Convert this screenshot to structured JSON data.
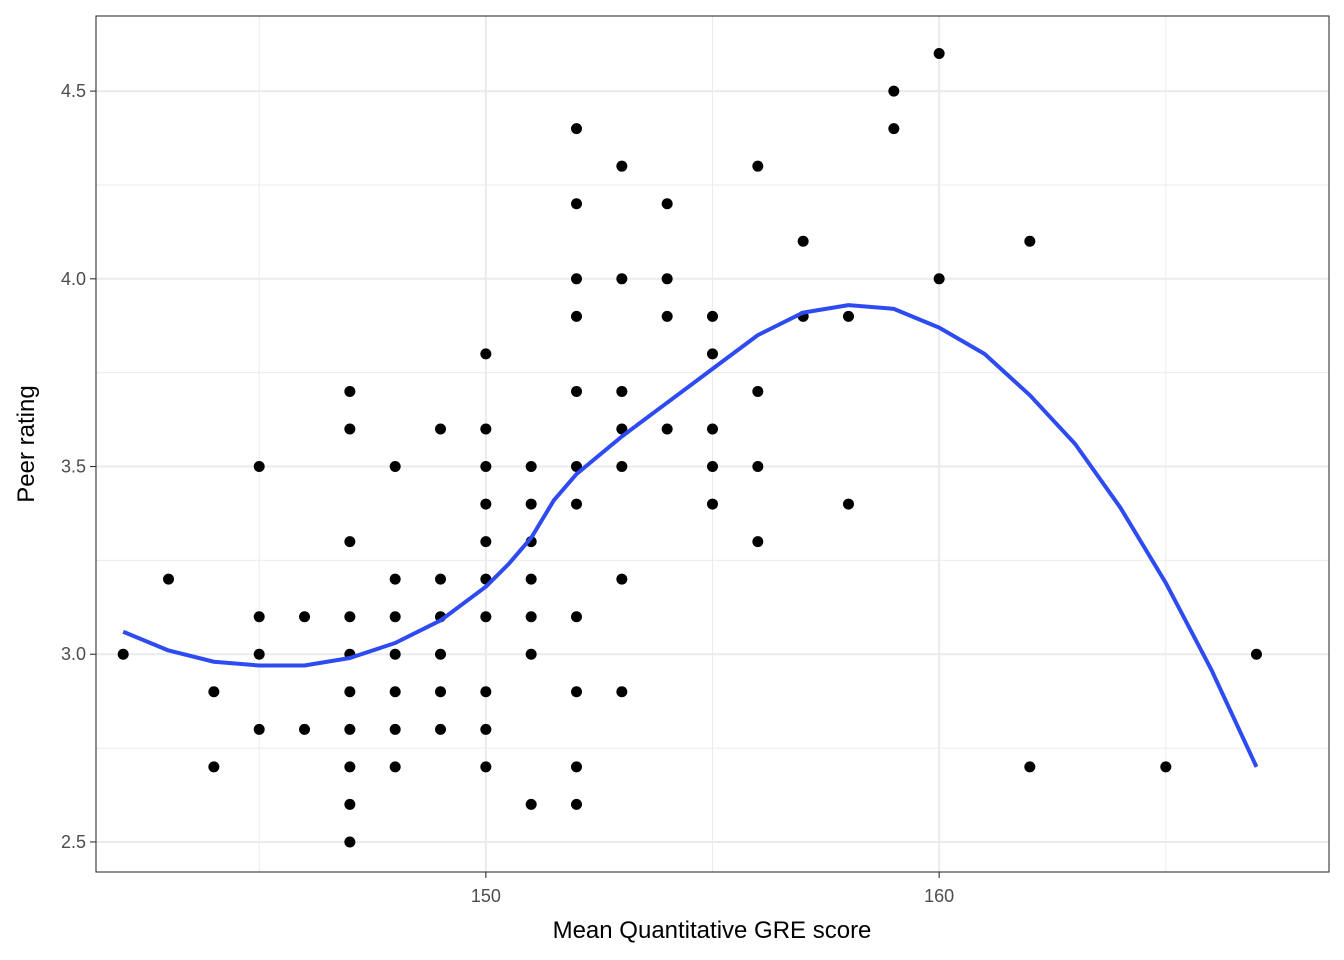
{
  "chart_data": {
    "type": "scatter",
    "title": "",
    "xlabel": "Mean Quantitative GRE score",
    "ylabel": "Peer rating",
    "xlim": [
      141.4,
      168.6
    ],
    "ylim": [
      2.42,
      4.7
    ],
    "x_ticks": [
      150,
      160
    ],
    "x_tick_labels": [
      "150",
      "160"
    ],
    "x_minor_ticks": [
      145,
      155,
      165
    ],
    "y_ticks": [
      2.5,
      3.0,
      3.5,
      4.0,
      4.5
    ],
    "y_tick_labels": [
      "2.5",
      "3.0",
      "3.5",
      "4.0",
      "4.5"
    ],
    "y_minor_ticks": [
      2.75,
      3.25,
      3.75,
      4.25
    ],
    "grid": true,
    "legend": "none",
    "colors": {
      "points": "#000000",
      "smooth_line": "#2e4bf2",
      "grid": "#ebebeb",
      "panel_border": "#333333"
    },
    "series": [
      {
        "kind": "points",
        "points": [
          [
            142,
            3.0
          ],
          [
            143,
            3.2
          ],
          [
            144,
            2.9
          ],
          [
            144,
            2.7
          ],
          [
            145,
            3.5
          ],
          [
            145,
            3.1
          ],
          [
            145,
            3.0
          ],
          [
            145,
            2.8
          ],
          [
            146,
            3.1
          ],
          [
            146,
            2.8
          ],
          [
            147,
            3.7
          ],
          [
            147,
            3.6
          ],
          [
            147,
            3.3
          ],
          [
            147,
            3.1
          ],
          [
            147,
            3.0
          ],
          [
            147,
            2.9
          ],
          [
            147,
            2.8
          ],
          [
            147,
            2.7
          ],
          [
            147,
            2.6
          ],
          [
            147,
            2.5
          ],
          [
            148,
            3.5
          ],
          [
            148,
            3.2
          ],
          [
            148,
            3.1
          ],
          [
            148,
            3.0
          ],
          [
            148,
            2.9
          ],
          [
            148,
            2.8
          ],
          [
            148,
            2.7
          ],
          [
            149,
            3.6
          ],
          [
            149,
            3.2
          ],
          [
            149,
            3.1
          ],
          [
            149,
            3.0
          ],
          [
            149,
            2.9
          ],
          [
            149,
            2.8
          ],
          [
            150,
            3.8
          ],
          [
            150,
            3.6
          ],
          [
            150,
            3.5
          ],
          [
            150,
            3.4
          ],
          [
            150,
            3.3
          ],
          [
            150,
            3.2
          ],
          [
            150,
            3.1
          ],
          [
            150,
            2.9
          ],
          [
            150,
            2.8
          ],
          [
            150,
            2.7
          ],
          [
            151,
            3.5
          ],
          [
            151,
            3.4
          ],
          [
            151,
            3.3
          ],
          [
            151,
            3.2
          ],
          [
            151,
            3.1
          ],
          [
            151,
            3.0
          ],
          [
            151,
            2.6
          ],
          [
            152,
            4.4
          ],
          [
            152,
            4.2
          ],
          [
            152,
            4.0
          ],
          [
            152,
            3.9
          ],
          [
            152,
            3.7
          ],
          [
            152,
            3.5
          ],
          [
            152,
            3.4
          ],
          [
            152,
            3.1
          ],
          [
            152,
            2.9
          ],
          [
            152,
            2.7
          ],
          [
            152,
            2.6
          ],
          [
            153,
            4.3
          ],
          [
            153,
            4.0
          ],
          [
            153,
            3.7
          ],
          [
            153,
            3.6
          ],
          [
            153,
            3.5
          ],
          [
            153,
            3.2
          ],
          [
            153,
            2.9
          ],
          [
            154,
            4.2
          ],
          [
            154,
            4.0
          ],
          [
            154,
            3.9
          ],
          [
            154,
            3.6
          ],
          [
            155,
            3.9
          ],
          [
            155,
            3.8
          ],
          [
            155,
            3.6
          ],
          [
            155,
            3.5
          ],
          [
            155,
            3.4
          ],
          [
            156,
            4.3
          ],
          [
            156,
            3.7
          ],
          [
            156,
            3.5
          ],
          [
            156,
            3.3
          ],
          [
            157,
            4.1
          ],
          [
            157,
            3.9
          ],
          [
            158,
            3.9
          ],
          [
            158,
            3.4
          ],
          [
            159,
            4.5
          ],
          [
            159,
            4.4
          ],
          [
            160,
            4.6
          ],
          [
            160,
            4.0
          ],
          [
            162,
            4.1
          ],
          [
            162,
            2.7
          ],
          [
            165,
            2.7
          ],
          [
            167,
            3.0
          ]
        ]
      },
      {
        "kind": "smooth",
        "x": [
          142.0,
          143.0,
          144.0,
          145.0,
          146.0,
          147.0,
          148.0,
          149.0,
          150.0,
          150.5,
          151.0,
          151.5,
          152.0,
          153.0,
          154.0,
          155.0,
          156.0,
          157.0,
          158.0,
          159.0,
          160.0,
          161.0,
          162.0,
          163.0,
          164.0,
          165.0,
          166.0,
          167.0
        ],
        "y": [
          3.06,
          3.01,
          2.98,
          2.97,
          2.97,
          2.99,
          3.03,
          3.09,
          3.18,
          3.24,
          3.31,
          3.41,
          3.48,
          3.58,
          3.67,
          3.76,
          3.85,
          3.91,
          3.93,
          3.92,
          3.87,
          3.8,
          3.69,
          3.56,
          3.39,
          3.19,
          2.96,
          2.7
        ]
      }
    ]
  }
}
